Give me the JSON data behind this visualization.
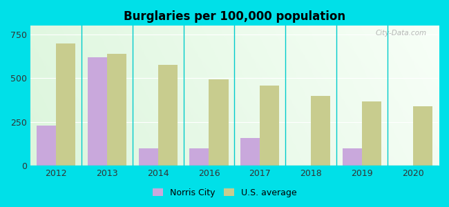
{
  "title": "Burglaries per 100,000 population",
  "years": [
    2012,
    2013,
    2014,
    2016,
    2017,
    2018,
    2019,
    2020
  ],
  "norris_city": [
    230,
    620,
    100,
    100,
    160,
    0,
    100,
    0
  ],
  "us_average": [
    700,
    640,
    575,
    495,
    458,
    400,
    368,
    340
  ],
  "norris_color": "#c9a8dc",
  "us_color": "#c8cc8e",
  "background_outer": "#00e0e8",
  "ylim": [
    0,
    800
  ],
  "yticks": [
    0,
    250,
    500,
    750
  ],
  "bar_width": 0.38,
  "legend_norris": "Norris City",
  "legend_us": "U.S. average",
  "watermark": "City-Data.com",
  "separator_color": "#00cccc",
  "grid_color": "#ffffff"
}
